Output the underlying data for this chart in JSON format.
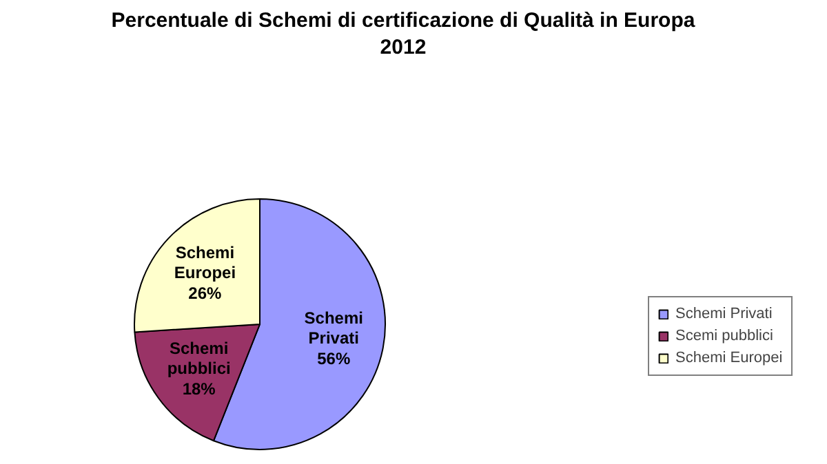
{
  "chart_data": {
    "type": "pie",
    "title": "Percentuale di Schemi di certificazione di Qualità in Europa\n2012",
    "categories": [
      "Schemi Privati",
      "Scemi pubblici",
      "Schemi Europei"
    ],
    "values": [
      56,
      18,
      26
    ],
    "colors": [
      "#9999ff",
      "#993366",
      "#ffffcc"
    ],
    "value_labels": [
      "Schemi\nPrivati\n56%",
      "Schemi\npubblici\n18%",
      "Schemi\nEuropei\n26%"
    ],
    "legend": "right"
  }
}
